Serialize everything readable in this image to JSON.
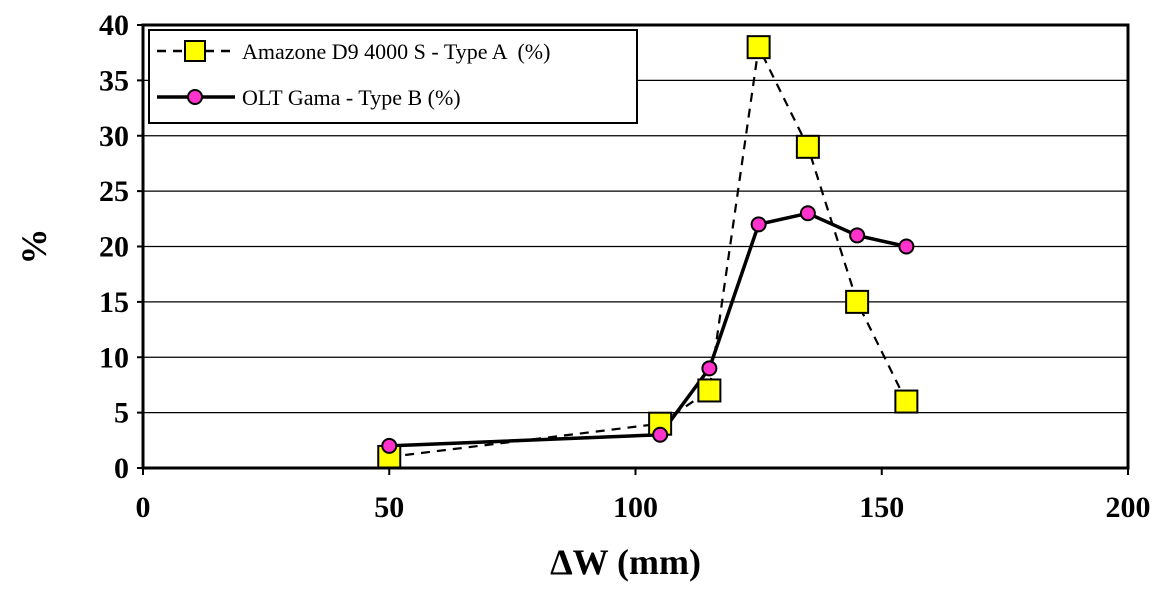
{
  "chart_data": {
    "type": "line",
    "xlabel": "ΔW (mm)",
    "ylabel": "%",
    "xlim": [
      0,
      200
    ],
    "ylim": [
      0,
      40
    ],
    "xticks": [
      "0",
      "50",
      "100",
      "150",
      "200"
    ],
    "yticks": [
      "0",
      "5",
      "10",
      "15",
      "20",
      "25",
      "30",
      "35",
      "40"
    ],
    "grid": "horizontal",
    "legend_position": "top-left",
    "series": [
      {
        "name": "Amazone D9 4000 S - Type A  (%)",
        "line_style": "dashed",
        "marker": "square",
        "marker_color": "#ffff00",
        "line_color": "#000000",
        "x": [
          50,
          105,
          115,
          125,
          135,
          145,
          155
        ],
        "y": [
          1,
          4,
          7,
          38,
          29,
          15,
          6
        ]
      },
      {
        "name": "OLT Gama - Type B (%)",
        "line_style": "solid",
        "marker": "circle",
        "marker_color": "#ff33cc",
        "line_color": "#000000",
        "x": [
          50,
          105,
          115,
          125,
          135,
          145,
          155
        ],
        "y": [
          2,
          3,
          9,
          22,
          23,
          21,
          20
        ]
      }
    ]
  }
}
